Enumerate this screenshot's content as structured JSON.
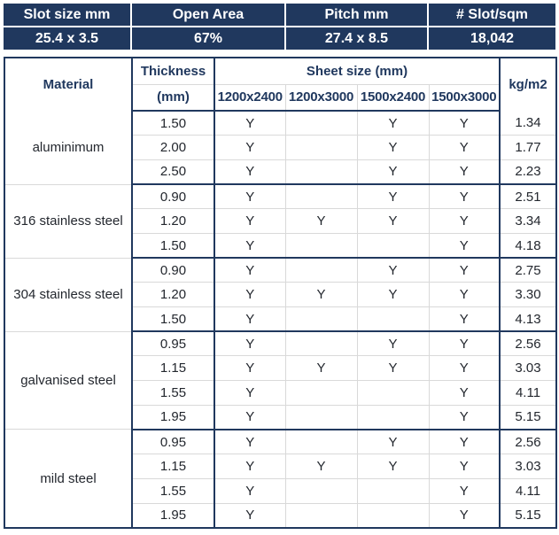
{
  "colors": {
    "navy": "#20385e",
    "banner_text": "#ffffff",
    "header_text": "#20385e",
    "body_text": "#23272e",
    "grid_gray": "#d9d9d9"
  },
  "banner": {
    "columns": [
      {
        "label": "Slot size mm",
        "value": "25.4 x 3.5"
      },
      {
        "label": "Open Area",
        "value": "67%"
      },
      {
        "label": "Pitch mm",
        "value": "27.4 x 8.5"
      },
      {
        "label": "# Slot/sqm",
        "value": "18,042"
      }
    ]
  },
  "table": {
    "headers": {
      "material": "Material",
      "thickness_line1": "Thickness",
      "thickness_line2": "(mm)",
      "sheet_size": "Sheet size (mm)",
      "sheet_columns": [
        "1200x2400",
        "1200x3000",
        "1500x2400",
        "1500x3000"
      ],
      "kg": "kg/m2"
    },
    "groups": [
      {
        "material": "aluminimum",
        "rows": [
          {
            "thickness": "1.50",
            "avail": [
              "Y",
              "",
              "Y",
              "Y"
            ],
            "kg": "1.34"
          },
          {
            "thickness": "2.00",
            "avail": [
              "Y",
              "",
              "Y",
              "Y"
            ],
            "kg": "1.77"
          },
          {
            "thickness": "2.50",
            "avail": [
              "Y",
              "",
              "Y",
              "Y"
            ],
            "kg": "2.23"
          }
        ]
      },
      {
        "material": "316 stainless steel",
        "rows": [
          {
            "thickness": "0.90",
            "avail": [
              "Y",
              "",
              "Y",
              "Y"
            ],
            "kg": "2.51"
          },
          {
            "thickness": "1.20",
            "avail": [
              "Y",
              "Y",
              "Y",
              "Y"
            ],
            "kg": "3.34"
          },
          {
            "thickness": "1.50",
            "avail": [
              "Y",
              "",
              "",
              "Y"
            ],
            "kg": "4.18"
          }
        ]
      },
      {
        "material": "304 stainless steel",
        "rows": [
          {
            "thickness": "0.90",
            "avail": [
              "Y",
              "",
              "Y",
              "Y"
            ],
            "kg": "2.75"
          },
          {
            "thickness": "1.20",
            "avail": [
              "Y",
              "Y",
              "Y",
              "Y"
            ],
            "kg": "3.30"
          },
          {
            "thickness": "1.50",
            "avail": [
              "Y",
              "",
              "",
              "Y"
            ],
            "kg": "4.13"
          }
        ]
      },
      {
        "material": "galvanised steel",
        "rows": [
          {
            "thickness": "0.95",
            "avail": [
              "Y",
              "",
              "Y",
              "Y"
            ],
            "kg": "2.56"
          },
          {
            "thickness": "1.15",
            "avail": [
              "Y",
              "Y",
              "Y",
              "Y"
            ],
            "kg": "3.03"
          },
          {
            "thickness": "1.55",
            "avail": [
              "Y",
              "",
              "",
              "Y"
            ],
            "kg": "4.11"
          },
          {
            "thickness": "1.95",
            "avail": [
              "Y",
              "",
              "",
              "Y"
            ],
            "kg": "5.15"
          }
        ]
      },
      {
        "material": "mild steel",
        "rows": [
          {
            "thickness": "0.95",
            "avail": [
              "Y",
              "",
              "Y",
              "Y"
            ],
            "kg": "2.56"
          },
          {
            "thickness": "1.15",
            "avail": [
              "Y",
              "Y",
              "Y",
              "Y"
            ],
            "kg": "3.03"
          },
          {
            "thickness": "1.55",
            "avail": [
              "Y",
              "",
              "",
              "Y"
            ],
            "kg": "4.11"
          },
          {
            "thickness": "1.95",
            "avail": [
              "Y",
              "",
              "",
              "Y"
            ],
            "kg": "5.15"
          }
        ]
      }
    ]
  }
}
